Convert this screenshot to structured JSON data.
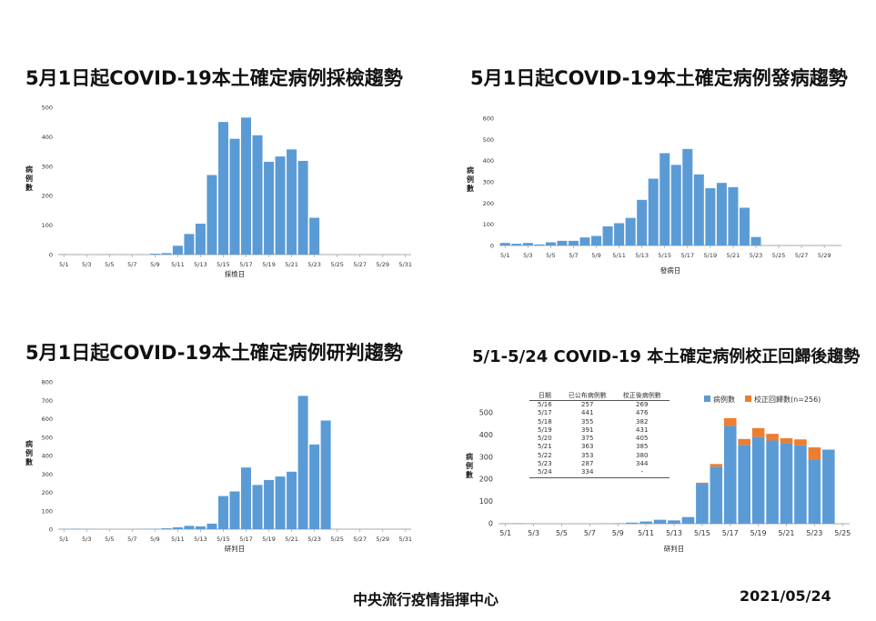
{
  "titles": {
    "p1": "5月1日起COVID-19本土確定病例採檢趨勢",
    "p2": "5月1日起COVID-19本土確定病例發病趨勢",
    "p3": "5月1日起COVID-19本土確定病例研判趨勢",
    "p4": "5/1-5/24 COVID-19 本土確定病例校正回歸後趨勢"
  },
  "footer": {
    "org": "中央流行疫情指揮中心",
    "date": "2021/05/24"
  },
  "colors": {
    "bar": "#5b9bd5",
    "correction": "#ed7d31"
  },
  "chart_data": [
    {
      "type": "bar",
      "ylabel": "病例數",
      "xlabel": "採檢日",
      "ylim": [
        0,
        500
      ],
      "yticks": [
        0,
        100,
        200,
        300,
        400,
        500
      ],
      "xtick_labels": [
        "5/1",
        "5/3",
        "5/5",
        "5/7",
        "5/9",
        "5/11",
        "5/13",
        "5/15",
        "5/17",
        "5/19",
        "5/21",
        "5/23",
        "5/25",
        "5/27",
        "5/29",
        "5/31"
      ],
      "categories": [
        "5/1",
        "5/2",
        "5/3",
        "5/4",
        "5/5",
        "5/6",
        "5/7",
        "5/8",
        "5/9",
        "5/10",
        "5/11",
        "5/12",
        "5/13",
        "5/14",
        "5/15",
        "5/16",
        "5/17",
        "5/18",
        "5/19",
        "5/20",
        "5/21",
        "5/22",
        "5/23",
        "5/24",
        "5/25",
        "5/26",
        "5/27",
        "5/28",
        "5/29",
        "5/30",
        "5/31"
      ],
      "values": [
        1,
        0,
        0,
        0,
        1,
        0,
        0,
        0,
        3,
        5,
        30,
        70,
        105,
        270,
        450,
        393,
        465,
        405,
        315,
        333,
        357,
        318,
        125,
        0,
        0,
        0,
        0,
        0,
        0,
        0,
        0
      ]
    },
    {
      "type": "bar",
      "ylabel": "病例數",
      "xlabel": "發病日",
      "ylim": [
        0,
        600
      ],
      "yticks": [
        0,
        100,
        200,
        300,
        400,
        500,
        600
      ],
      "xtick_labels": [
        "5/1",
        "5/3",
        "5/5",
        "5/7",
        "5/9",
        "5/11",
        "5/13",
        "5/15",
        "5/17",
        "5/19",
        "5/21",
        "5/23",
        "5/25",
        "5/27",
        "5/29"
      ],
      "categories": [
        "5/1",
        "5/2",
        "5/3",
        "5/4",
        "5/5",
        "5/6",
        "5/7",
        "5/8",
        "5/9",
        "5/10",
        "5/11",
        "5/12",
        "5/13",
        "5/14",
        "5/15",
        "5/16",
        "5/17",
        "5/18",
        "5/19",
        "5/20",
        "5/21",
        "5/22",
        "5/23",
        "5/24",
        "5/25",
        "5/26",
        "5/27",
        "5/28",
        "5/29",
        "5/30"
      ],
      "values": [
        12,
        8,
        12,
        5,
        15,
        22,
        22,
        38,
        45,
        90,
        105,
        130,
        215,
        315,
        435,
        380,
        455,
        335,
        270,
        295,
        275,
        178,
        40,
        0,
        0,
        0,
        0,
        0,
        0,
        0
      ]
    },
    {
      "type": "bar",
      "ylabel": "病例數",
      "xlabel": "研判日",
      "ylim": [
        0,
        800
      ],
      "yticks": [
        0,
        100,
        200,
        300,
        400,
        500,
        600,
        700,
        800
      ],
      "xtick_labels": [
        "5/1",
        "5/3",
        "5/5",
        "5/7",
        "5/9",
        "5/11",
        "5/13",
        "5/15",
        "5/17",
        "5/19",
        "5/21",
        "5/23",
        "5/25",
        "5/27",
        "5/29",
        "5/31"
      ],
      "categories": [
        "5/1",
        "5/2",
        "5/3",
        "5/4",
        "5/5",
        "5/6",
        "5/7",
        "5/8",
        "5/9",
        "5/10",
        "5/11",
        "5/12",
        "5/13",
        "5/14",
        "5/15",
        "5/16",
        "5/17",
        "5/18",
        "5/19",
        "5/20",
        "5/21",
        "5/22",
        "5/23",
        "5/24",
        "5/25",
        "5/26",
        "5/27",
        "5/28",
        "5/29",
        "5/30",
        "5/31"
      ],
      "values": [
        1,
        2,
        1,
        0,
        0,
        0,
        0,
        1,
        2,
        5,
        10,
        18,
        15,
        30,
        180,
        205,
        335,
        240,
        267,
        286,
        312,
        724,
        460,
        590,
        0,
        0,
        0,
        0,
        0,
        0,
        0
      ]
    },
    {
      "type": "bar",
      "stacked": true,
      "ylabel": "病例數",
      "xlabel": "研判日",
      "ylim": [
        0,
        500
      ],
      "yticks": [
        0,
        100,
        200,
        300,
        400,
        500
      ],
      "legend_position": "top-right",
      "xtick_labels": [
        "5/1",
        "5/3",
        "5/5",
        "5/7",
        "5/9",
        "5/11",
        "5/13",
        "5/15",
        "5/17",
        "5/19",
        "5/21",
        "5/23",
        "5/25"
      ],
      "categories": [
        "5/1",
        "5/2",
        "5/3",
        "5/4",
        "5/5",
        "5/6",
        "5/7",
        "5/8",
        "5/9",
        "5/10",
        "5/11",
        "5/12",
        "5/13",
        "5/14",
        "5/15",
        "5/16",
        "5/17",
        "5/18",
        "5/19",
        "5/20",
        "5/21",
        "5/22",
        "5/23",
        "5/24",
        "5/25"
      ],
      "series": [
        {
          "name": "病例數",
          "values": [
            1,
            2,
            1,
            0,
            0,
            0,
            0,
            1,
            2,
            5,
            10,
            18,
            15,
            30,
            180,
            257,
            441,
            355,
            391,
            375,
            363,
            353,
            287,
            334,
            0
          ]
        },
        {
          "name": "校正回歸數(n=256)",
          "values": [
            0,
            0,
            0,
            0,
            0,
            0,
            0,
            0,
            0,
            0,
            0,
            0,
            0,
            0,
            5,
            12,
            35,
            27,
            40,
            30,
            22,
            27,
            57,
            0,
            0
          ]
        }
      ],
      "table": {
        "headers": [
          "日期",
          "已公布病例數",
          "校正後病例數"
        ],
        "rows": [
          [
            "5/16",
            "257",
            "269"
          ],
          [
            "5/17",
            "441",
            "476"
          ],
          [
            "5/18",
            "355",
            "382"
          ],
          [
            "5/19",
            "391",
            "431"
          ],
          [
            "5/20",
            "375",
            "405"
          ],
          [
            "5/21",
            "363",
            "385"
          ],
          [
            "5/22",
            "353",
            "380"
          ],
          [
            "5/23",
            "287",
            "344"
          ],
          [
            "5/24",
            "334",
            "-"
          ]
        ]
      }
    }
  ]
}
